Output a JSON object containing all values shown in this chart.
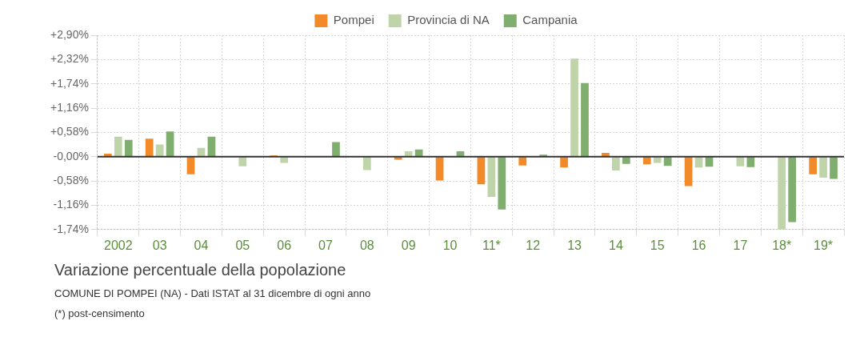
{
  "chart_data": {
    "type": "bar",
    "title": "Variazione percentuale della popolazione",
    "subtitle": "COMUNE DI POMPEI (NA) - Dati ISTAT al 31 dicembre di ogni anno",
    "annotations": [
      "(*) post-censimento"
    ],
    "categories": [
      "2002",
      "03",
      "04",
      "05",
      "06",
      "07",
      "08",
      "09",
      "10",
      "11*",
      "12",
      "13",
      "14",
      "15",
      "16",
      "17",
      "18*",
      "19*"
    ],
    "series": [
      {
        "name": "Pompei",
        "color": "#f28a2a",
        "values": [
          0.07,
          0.43,
          -0.42,
          0,
          0.03,
          0,
          0,
          -0.07,
          -0.57,
          -0.66,
          -0.21,
          -0.26,
          0.09,
          -0.18,
          -0.7,
          0,
          0,
          -0.42
        ]
      },
      {
        "name": "Provincia di NA",
        "color": "#bfd4a8",
        "values": [
          0.48,
          0.29,
          0.21,
          -0.23,
          -0.15,
          0,
          -0.32,
          0.13,
          0,
          -0.96,
          0,
          2.34,
          -0.33,
          -0.15,
          -0.26,
          -0.23,
          -1.74,
          -0.5
        ]
      },
      {
        "name": "Campania",
        "color": "#7fae6e",
        "values": [
          0.4,
          0.6,
          0.48,
          0,
          0,
          0.35,
          0,
          0.17,
          0.13,
          -1.26,
          0.05,
          1.76,
          -0.17,
          -0.22,
          -0.24,
          -0.25,
          -1.56,
          -0.53
        ]
      }
    ],
    "ylim": [
      -1.74,
      2.9
    ],
    "yticks": [
      {
        "value": -1.74,
        "label": "-1,74%"
      },
      {
        "value": -1.16,
        "label": "-1,16%"
      },
      {
        "value": -0.58,
        "label": "-0,58%"
      },
      {
        "value": 0,
        "label": "-0,00%"
      },
      {
        "value": 0.58,
        "label": "+0,58%"
      },
      {
        "value": 1.16,
        "label": "+1,16%"
      },
      {
        "value": 1.74,
        "label": "+1,74%"
      },
      {
        "value": 2.32,
        "label": "+2,32%"
      },
      {
        "value": 2.9,
        "label": "+2,90%"
      }
    ],
    "ref_lines": [
      {
        "axis": "y",
        "value": 0,
        "color": "#333333"
      }
    ],
    "grid": true,
    "legend": "top"
  }
}
